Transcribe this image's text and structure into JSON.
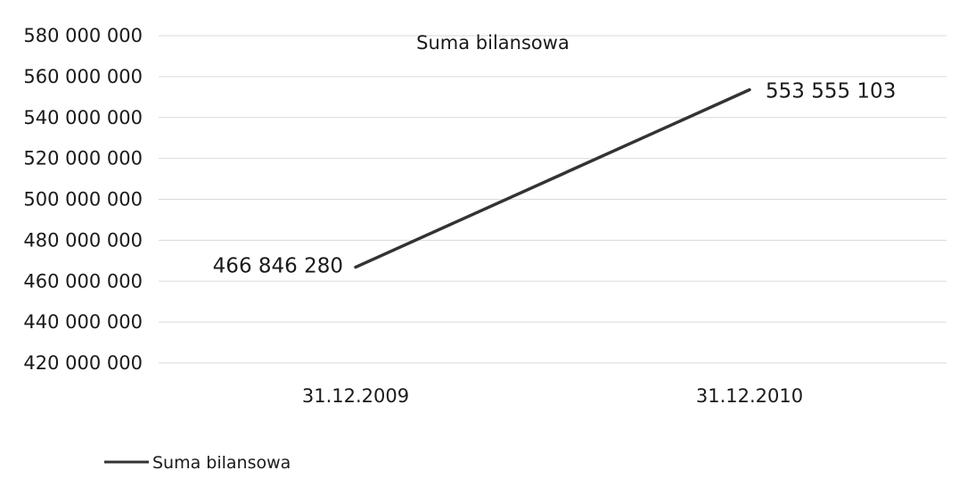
{
  "chart_data": {
    "type": "line",
    "title": "Suma bilansowa",
    "categories": [
      "31.12.2009",
      "31.12.2010"
    ],
    "series": [
      {
        "name": "Suma bilansowa",
        "values": [
          466846280,
          553555103
        ]
      }
    ],
    "data_labels": [
      "466 846 280",
      "553 555 103"
    ],
    "ylim": [
      420000000,
      580000000
    ],
    "y_ticks": [
      420000000,
      440000000,
      460000000,
      480000000,
      500000000,
      520000000,
      540000000,
      560000000,
      580000000
    ],
    "y_tick_labels": [
      "420 000 000",
      "440 000 000",
      "460 000 000",
      "480 000 000",
      "500 000 000",
      "520 000 000",
      "540 000 000",
      "560 000 000",
      "580 000 000"
    ],
    "grid": true,
    "legend": {
      "position": "bottom-left",
      "entries": [
        "Suma bilansowa"
      ]
    },
    "colors": {
      "series": "#333333",
      "grid": "#d9d9d9",
      "text": "#1a1a1a"
    }
  }
}
